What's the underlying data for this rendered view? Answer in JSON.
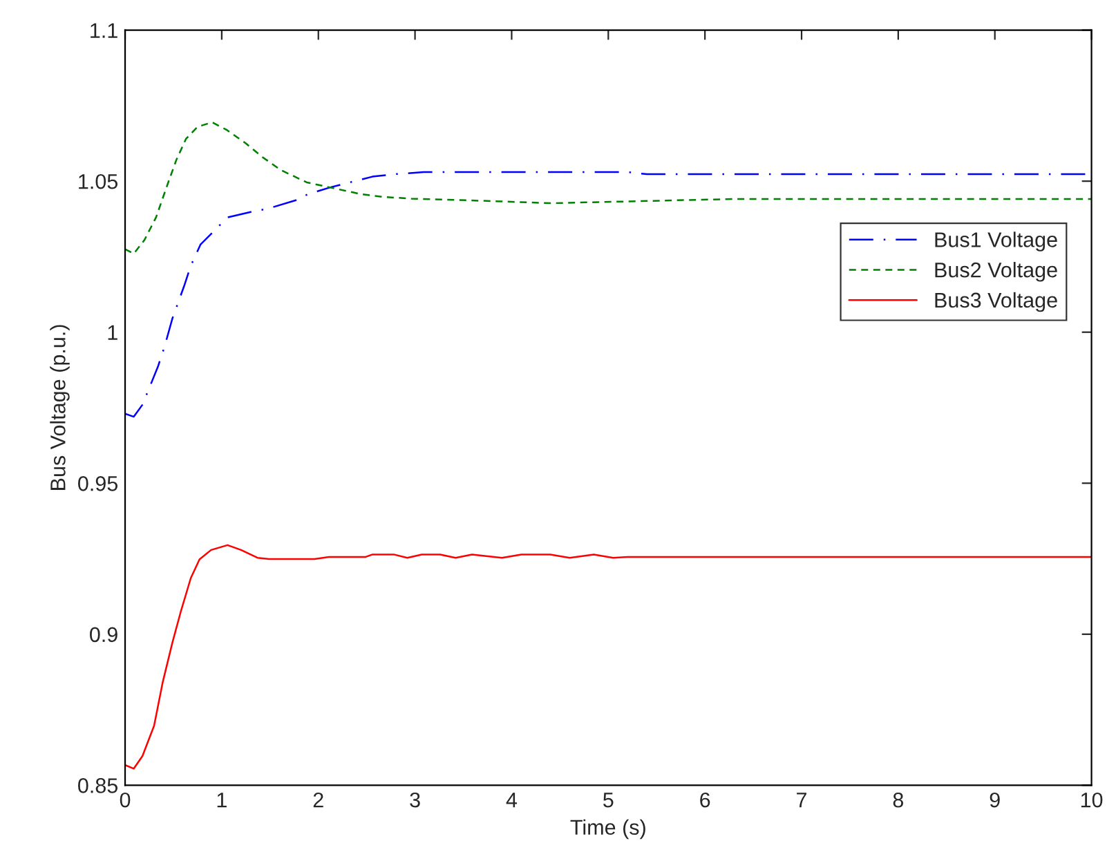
{
  "chart_data": {
    "type": "line",
    "xlabel": "Time (s)",
    "ylabel": "Bus Voltage (p.u.)",
    "xlim": [
      0,
      10
    ],
    "xticks": [
      0,
      1,
      2,
      3,
      4,
      5,
      6,
      7,
      8,
      9,
      10
    ],
    "ylim": [
      0.85,
      1.1
    ],
    "yticks": [
      0.85,
      0.9,
      0.95,
      1,
      1.05,
      1.1
    ],
    "grid": false,
    "legend": "right",
    "series": [
      {
        "name": "Bus1 Voltage",
        "color": "#0000ff",
        "line_style": "dashdot",
        "x": [
          0,
          0.09,
          0.18,
          0.34,
          0.41,
          0.49,
          0.61,
          0.68,
          0.78,
          1.06,
          1.3,
          1.49,
          1.8,
          1.89,
          2.13,
          2.56,
          2.78,
          3.09,
          5.2,
          5.4,
          10
        ],
        "values": [
          0.973,
          0.972,
          0.976,
          0.9886,
          0.9954,
          1.0046,
          1.0152,
          1.022,
          1.029,
          1.038,
          1.0398,
          1.041,
          1.044,
          1.0457,
          1.048,
          1.0515,
          1.0523,
          1.053,
          1.053,
          1.0523,
          1.0523
        ]
      },
      {
        "name": "Bus2 Voltage",
        "color": "#008000",
        "line_style": "dashed",
        "x": [
          0,
          0.09,
          0.2,
          0.32,
          0.44,
          0.53,
          0.63,
          0.75,
          0.9,
          1.05,
          1.25,
          1.42,
          1.61,
          1.88,
          2.11,
          2.44,
          2.67,
          2.96,
          3.7,
          4.4,
          6.3,
          10
        ],
        "values": [
          1.0275,
          1.026,
          1.0305,
          1.038,
          1.049,
          1.057,
          1.064,
          1.068,
          1.0695,
          1.067,
          1.0625,
          1.058,
          1.0537,
          1.0496,
          1.048,
          1.0457,
          1.0448,
          1.0442,
          1.0435,
          1.0427,
          1.0441,
          1.0441
        ]
      },
      {
        "name": "Bus3 Voltage",
        "color": "#ff0000",
        "line_style": "solid",
        "x": [
          0,
          0.09,
          0.18,
          0.3,
          0.39,
          0.49,
          0.58,
          0.68,
          0.77,
          0.89,
          1.06,
          1.2,
          1.37,
          1.49,
          1.96,
          2.11,
          2.49,
          2.56,
          2.78,
          2.92,
          3.07,
          3.26,
          3.42,
          3.59,
          3.9,
          4.1,
          4.4,
          4.6,
          4.85,
          5.05,
          5.2,
          10
        ],
        "values": [
          0.8567,
          0.8555,
          0.8597,
          0.8697,
          0.8842,
          0.8973,
          0.9079,
          0.9186,
          0.9248,
          0.9279,
          0.9295,
          0.9279,
          0.9253,
          0.9249,
          0.9249,
          0.9256,
          0.9256,
          0.9264,
          0.9264,
          0.9253,
          0.9264,
          0.9264,
          0.9253,
          0.9264,
          0.9253,
          0.9264,
          0.9264,
          0.9253,
          0.9264,
          0.9253,
          0.9256,
          0.9256
        ]
      }
    ]
  }
}
